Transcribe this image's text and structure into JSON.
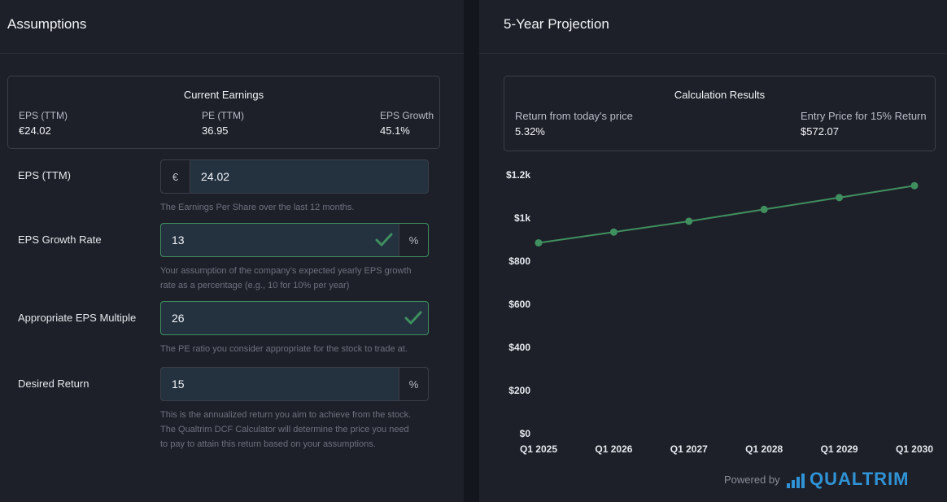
{
  "assumptions": {
    "title": "Assumptions",
    "current_earnings": {
      "title": "Current Earnings",
      "metrics": [
        {
          "label": "EPS (TTM)",
          "value": "€24.02"
        },
        {
          "label": "PE (TTM)",
          "value": "36.95"
        },
        {
          "label": "EPS Growth",
          "value": "45.1%"
        }
      ]
    },
    "fields": {
      "eps": {
        "label": "EPS (TTM)",
        "prefix": "€",
        "value": "24.02",
        "help": "The Earnings Per Share over the last 12 months."
      },
      "growth": {
        "label": "EPS Growth Rate",
        "value": "13",
        "suffix": "%",
        "help_1": "Your assumption of the company's expected yearly EPS growth",
        "help_2": "rate as a percentage (e.g., 10 for 10% per year)"
      },
      "multiple": {
        "label": "Appropriate EPS Multiple",
        "value": "26",
        "help": "The PE ratio you consider appropriate for the stock to trade at."
      },
      "return": {
        "label": "Desired Return",
        "value": "15",
        "suffix": "%",
        "help_1": "This is the annualized return you aim to achieve from the stock.",
        "help_2": "The Qualtrim DCF Calculator will determine the price you need",
        "help_3": "to pay to attain this return based on your assumptions."
      }
    }
  },
  "projection": {
    "title": "5-Year Projection",
    "results": {
      "title": "Calculation Results",
      "left_label": "Return from today's price",
      "left_value": "5.32%",
      "right_label": "Entry Price for 15% Return",
      "right_value": "$572.07"
    }
  },
  "chart_data": {
    "type": "line",
    "x": [
      "Q1 2025",
      "Q1 2026",
      "Q1 2027",
      "Q1 2028",
      "Q1 2029",
      "Q1 2030"
    ],
    "series": [
      {
        "values": [
          885,
          935,
          985,
          1040,
          1095,
          1150
        ]
      }
    ],
    "yticks": [
      "$0",
      "$200",
      "$400",
      "$600",
      "$800",
      "$1k",
      "$1.2k"
    ],
    "ytick_values": [
      0,
      200,
      400,
      600,
      800,
      1000,
      1200
    ],
    "ylim": [
      0,
      1200
    ],
    "line_color": "#3f8f5f",
    "grid": false
  },
  "footer": {
    "powered_by": "Powered by",
    "brand": "QUALTRIM",
    "brand_color": "#2f93d6"
  },
  "colors": {
    "valid": "#3f8f5f",
    "panel_bg": "#1e2029",
    "input_bg": "#243240"
  }
}
